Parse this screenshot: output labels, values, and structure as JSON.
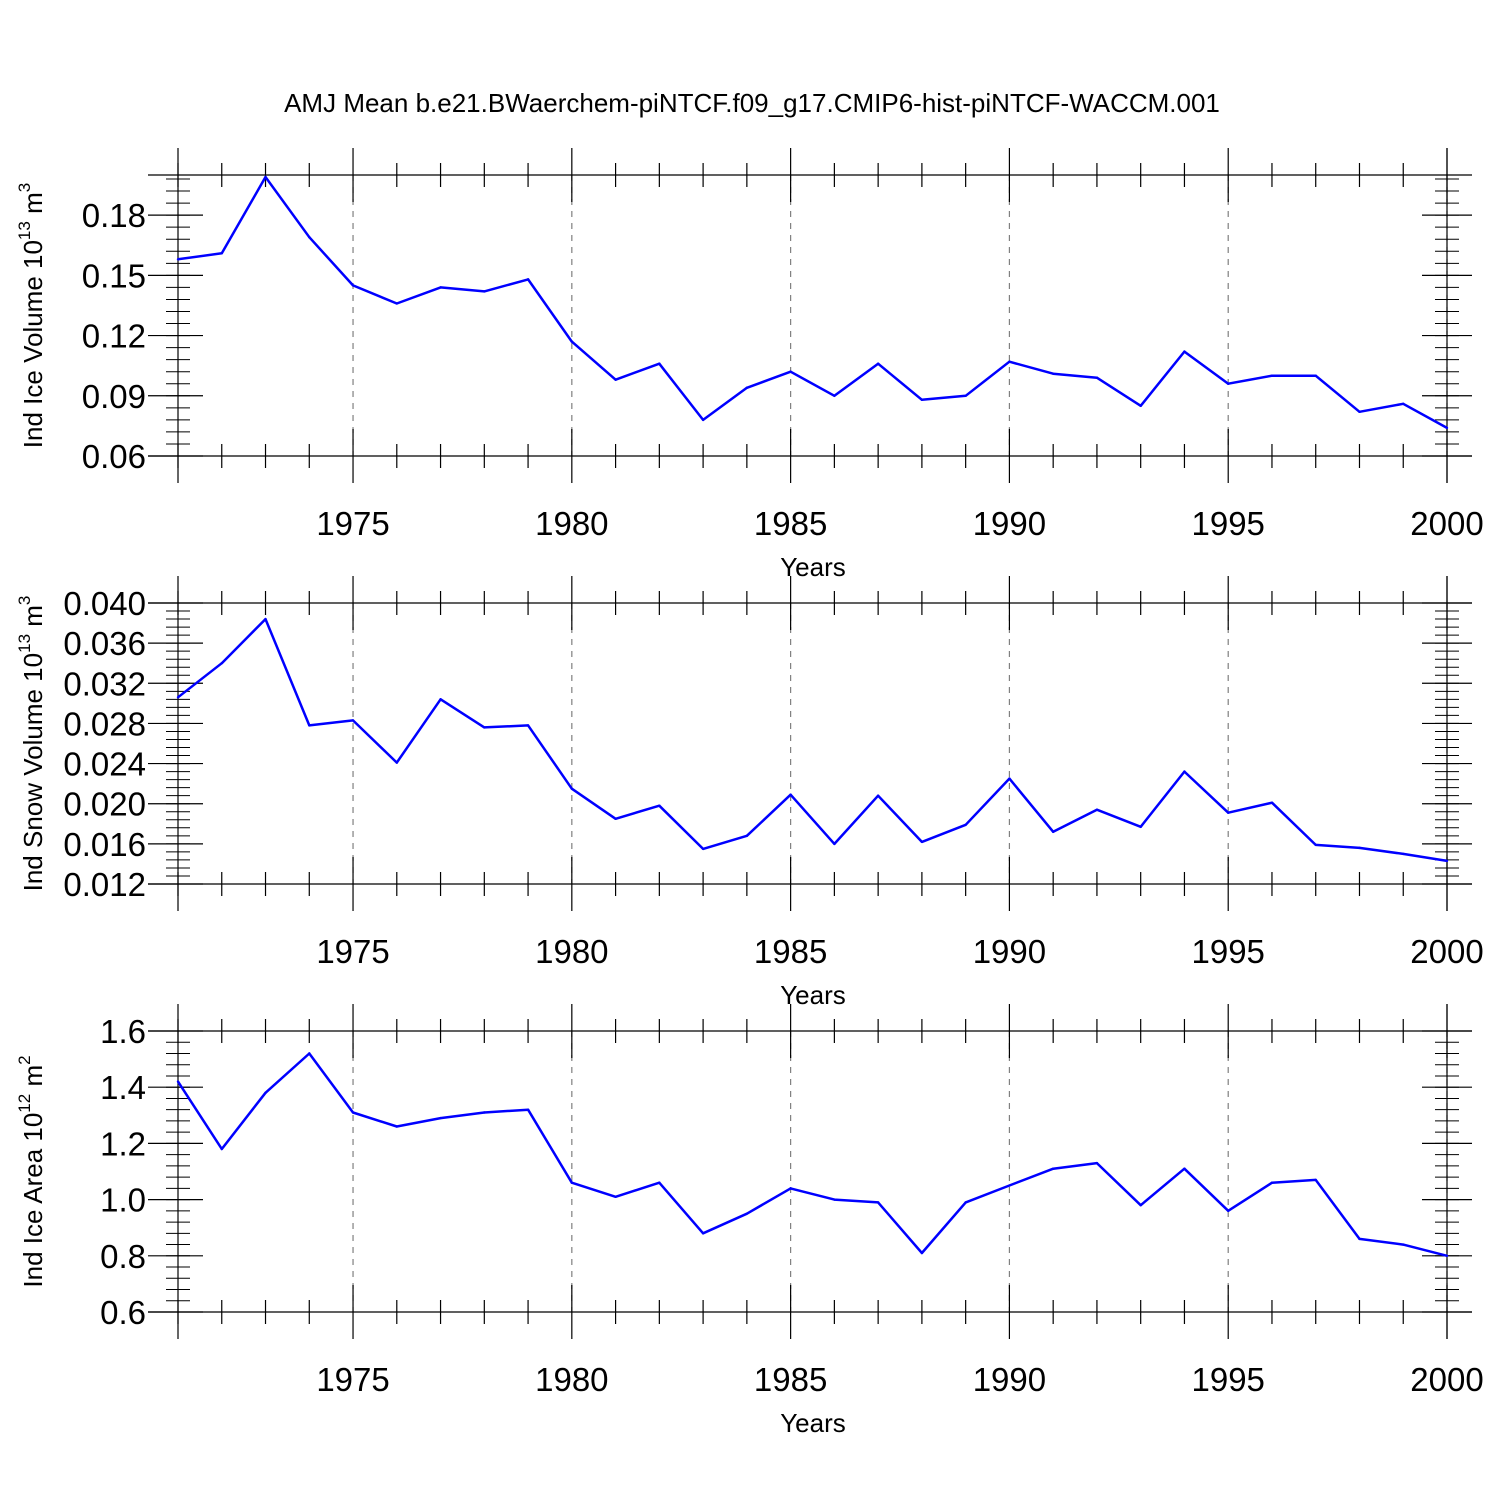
{
  "title": "AMJ Mean b.e21.BWaerchem-piNTCF.f09_g17.CMIP6-hist-piNTCF-WACCM.001",
  "colors": {
    "line": "#0000ff",
    "axis": "#000000",
    "grid": "#808080"
  },
  "chart_data": [
    {
      "type": "line",
      "xlabel": "Years",
      "ylabel": {
        "text": "Ind Ice Volume 10",
        "exp": "13",
        "unit": " m",
        "unit_exp": "3"
      },
      "xlim": [
        1971,
        2000
      ],
      "ylim": [
        0.06,
        0.2
      ],
      "xticks": [
        1975,
        1980,
        1985,
        1990,
        1995,
        2000
      ],
      "xtick_labels": [
        "1975",
        "1980",
        "1985",
        "1990",
        "1995",
        "2000"
      ],
      "yticks": [
        0.06,
        0.09,
        0.12,
        0.15,
        0.18
      ],
      "ytick_labels": [
        "0.06",
        "0.09",
        "0.12",
        "0.15",
        "0.18"
      ],
      "yminor_step": 0.006,
      "vertical_grid": true,
      "x": [
        1971,
        1972,
        1973,
        1974,
        1975,
        1976,
        1977,
        1978,
        1979,
        1980,
        1981,
        1982,
        1983,
        1984,
        1985,
        1986,
        1987,
        1988,
        1989,
        1990,
        1991,
        1992,
        1993,
        1994,
        1995,
        1996,
        1997,
        1998,
        1999,
        2000
      ],
      "y": [
        0.158,
        0.161,
        0.199,
        0.169,
        0.145,
        0.136,
        0.144,
        0.142,
        0.148,
        0.117,
        0.098,
        0.106,
        0.078,
        0.094,
        0.102,
        0.09,
        0.106,
        0.088,
        0.09,
        0.107,
        0.101,
        0.099,
        0.085,
        0.112,
        0.096,
        0.1,
        0.1,
        0.082,
        0.086,
        0.074
      ]
    },
    {
      "type": "line",
      "xlabel": "Years",
      "ylabel": {
        "text": "Ind Snow Volume 10",
        "exp": "13",
        "unit": " m",
        "unit_exp": "3"
      },
      "xlim": [
        1971,
        2000
      ],
      "ylim": [
        0.012,
        0.04
      ],
      "xticks": [
        1975,
        1980,
        1985,
        1990,
        1995,
        2000
      ],
      "xtick_labels": [
        "1975",
        "1980",
        "1985",
        "1990",
        "1995",
        "2000"
      ],
      "yticks": [
        0.012,
        0.016,
        0.02,
        0.024,
        0.028,
        0.032,
        0.036,
        0.04
      ],
      "ytick_labels": [
        "0.012",
        "0.016",
        "0.020",
        "0.024",
        "0.028",
        "0.032",
        "0.036",
        "0.040"
      ],
      "yminor_step": 0.0008,
      "vertical_grid": true,
      "x": [
        1971,
        1972,
        1973,
        1974,
        1975,
        1976,
        1977,
        1978,
        1979,
        1980,
        1981,
        1982,
        1983,
        1984,
        1985,
        1986,
        1987,
        1988,
        1989,
        1990,
        1991,
        1992,
        1993,
        1994,
        1995,
        1996,
        1997,
        1998,
        1999,
        2000
      ],
      "y": [
        0.0306,
        0.034,
        0.0384,
        0.0278,
        0.0283,
        0.0241,
        0.0304,
        0.0276,
        0.0278,
        0.0215,
        0.0185,
        0.0198,
        0.0155,
        0.0168,
        0.0209,
        0.016,
        0.0208,
        0.0162,
        0.0179,
        0.0225,
        0.0172,
        0.0194,
        0.0177,
        0.0232,
        0.0191,
        0.0201,
        0.0159,
        0.0156,
        0.015,
        0.0143
      ]
    },
    {
      "type": "line",
      "xlabel": "Years",
      "ylabel": {
        "text": "Ind Ice Area 10",
        "exp": "12",
        "unit": " m",
        "unit_exp": "2"
      },
      "xlim": [
        1971,
        2000
      ],
      "ylim": [
        0.6,
        1.6
      ],
      "xticks": [
        1975,
        1980,
        1985,
        1990,
        1995,
        2000
      ],
      "xtick_labels": [
        "1975",
        "1980",
        "1985",
        "1990",
        "1995",
        "2000"
      ],
      "yticks": [
        0.6,
        0.8,
        1.0,
        1.2,
        1.4,
        1.6
      ],
      "ytick_labels": [
        "0.6",
        "0.8",
        "1.0",
        "1.2",
        "1.4",
        "1.6"
      ],
      "yminor_step": 0.04,
      "vertical_grid": true,
      "x": [
        1971,
        1972,
        1973,
        1974,
        1975,
        1976,
        1977,
        1978,
        1979,
        1980,
        1981,
        1982,
        1983,
        1984,
        1985,
        1986,
        1987,
        1988,
        1989,
        1990,
        1991,
        1992,
        1993,
        1994,
        1995,
        1996,
        1997,
        1998,
        1999,
        2000
      ],
      "y": [
        1.42,
        1.18,
        1.38,
        1.52,
        1.31,
        1.26,
        1.29,
        1.31,
        1.32,
        1.06,
        1.01,
        1.06,
        0.88,
        0.95,
        1.04,
        1.0,
        0.99,
        0.81,
        0.99,
        1.05,
        1.11,
        1.13,
        0.98,
        1.11,
        0.96,
        1.06,
        1.07,
        0.86,
        0.84,
        0.8
      ]
    }
  ]
}
